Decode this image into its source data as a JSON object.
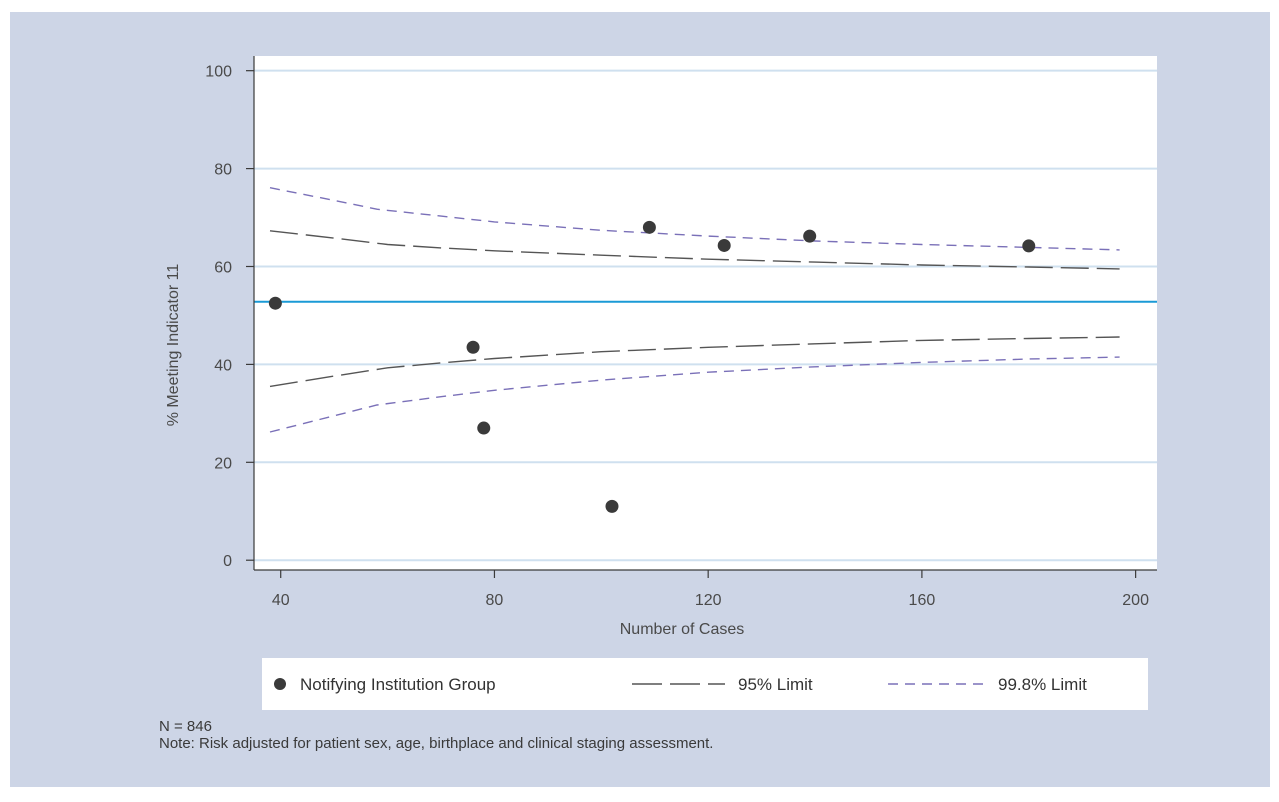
{
  "chart_data": {
    "type": "scatter",
    "xlabel": "Number of Cases",
    "ylabel": "% Meeting Indicator 11",
    "xlim": [
      35,
      204
    ],
    "ylim": [
      -2,
      103
    ],
    "x_ticks": [
      40,
      80,
      120,
      160,
      200
    ],
    "y_ticks": [
      0,
      20,
      40,
      60,
      80,
      100
    ],
    "grid": "horizontal",
    "reference_line": {
      "y": 52.8,
      "color": "#1a9ad6"
    },
    "points": {
      "name": "Notifying Institution Group",
      "color": "#3a3a3a",
      "data": [
        {
          "x": 39,
          "y": 52.5
        },
        {
          "x": 76,
          "y": 43.5
        },
        {
          "x": 78,
          "y": 27
        },
        {
          "x": 102,
          "y": 11
        },
        {
          "x": 109,
          "y": 68
        },
        {
          "x": 123,
          "y": 64.3
        },
        {
          "x": 139,
          "y": 66.2
        },
        {
          "x": 180,
          "y": 64.2
        }
      ]
    },
    "limits": [
      {
        "name": "95% Limit",
        "color": "#555555",
        "dash": "long",
        "x": [
          38,
          50,
          60,
          70,
          80,
          100,
          120,
          140,
          160,
          180,
          197
        ],
        "upper": [
          67.3,
          65.8,
          64.5,
          63.8,
          63.2,
          62.3,
          61.5,
          60.9,
          60.3,
          59.9,
          59.5
        ],
        "lower": [
          35.5,
          37.6,
          39.3,
          40.3,
          41.2,
          42.6,
          43.5,
          44.2,
          44.9,
          45.3,
          45.6
        ]
      },
      {
        "name": "99.8% Limit",
        "color": "#7a70b8",
        "dash": "short",
        "x": [
          38,
          50,
          58,
          70,
          80,
          100,
          120,
          140,
          160,
          180,
          197
        ],
        "upper": [
          76.1,
          73.5,
          71.7,
          70.3,
          69.1,
          67.4,
          66.2,
          65.2,
          64.5,
          63.9,
          63.4
        ],
        "lower": [
          26.2,
          29.5,
          31.7,
          33.4,
          34.7,
          36.8,
          38.4,
          39.5,
          40.4,
          41.1,
          41.5
        ]
      }
    ],
    "legend": {
      "position": "bottom",
      "entries": [
        "Notifying Institution Group",
        "95% Limit",
        "99.8% Limit"
      ]
    }
  },
  "notes": {
    "n": "N = 846",
    "note": "Note: Risk adjusted for patient sex, age, birthplace and clinical staging assessment."
  }
}
